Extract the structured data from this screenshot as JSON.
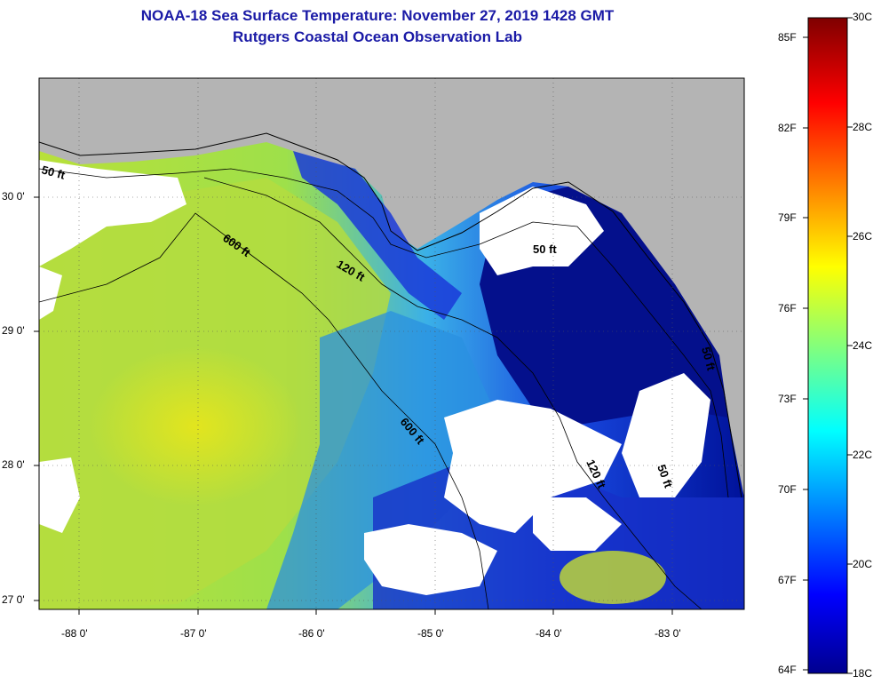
{
  "header": {
    "title": "NOAA-18 Sea Surface Temperature:  November 27, 2019 1428 GMT",
    "subtitle": "Rutgers Coastal Ocean Observation Lab"
  },
  "map": {
    "lon_labels": [
      "-88 0'",
      "-87 0'",
      "-86 0'",
      "-85 0'",
      "-84 0'",
      "-83 0'"
    ],
    "lat_labels": [
      "30 0'",
      "29 0'",
      "28 0'",
      "27 0'"
    ],
    "contour_labels": [
      "50 ft",
      "600 ft",
      "120 ft",
      "50 ft",
      "600 ft",
      "120 ft",
      "50 ft",
      "50 ft"
    ]
  },
  "colorbar": {
    "fahrenheit_labels": [
      "85F",
      "82F",
      "79F",
      "76F",
      "73F",
      "70F",
      "67F",
      "64F"
    ],
    "celsius_labels": [
      "30C",
      "28C",
      "26C",
      "24C",
      "22C",
      "20C",
      "18C"
    ]
  },
  "colors": {
    "title": "#1a1aa6",
    "land": "#b4b4b4",
    "cloud": "#ffffff",
    "cold": "#00008f",
    "warm": "#7f0000"
  }
}
